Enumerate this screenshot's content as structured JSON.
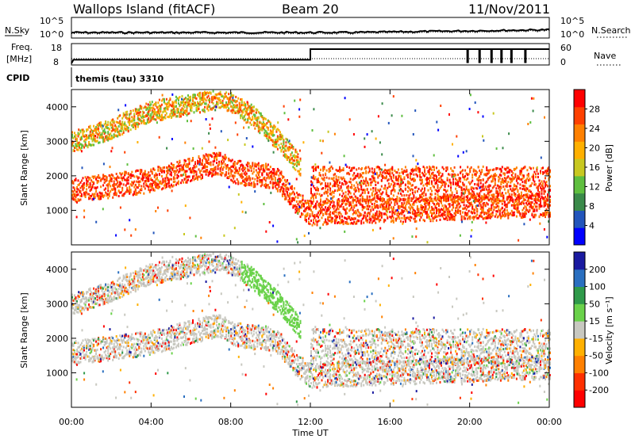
{
  "header": {
    "station": "Wallops Island (fitACF)",
    "beam": "Beam 20",
    "date": "11/Nov/2011"
  },
  "noise_panel": {
    "left_label": "N.Sky",
    "right_label": "N.Search",
    "left_ticks": [
      "10^5",
      "10^0"
    ],
    "right_ticks": [
      "10^5",
      "10^0"
    ]
  },
  "freq_panel": {
    "left_label_1": "Freq.",
    "left_label_2": "[MHz]",
    "right_label": "Nave",
    "left_ticks": [
      "18",
      "8"
    ],
    "right_ticks": [
      "60",
      "0"
    ]
  },
  "cpid_panel": {
    "label": "CPID",
    "program": "themis (tau) 3310"
  },
  "colors": {
    "power": [
      "#0000ff",
      "#2255bb",
      "#3a8a4a",
      "#5fbf3f",
      "#c8c820",
      "#ffb000",
      "#ff8000",
      "#ff4000",
      "#ff0000"
    ],
    "velocity_pos": [
      "#1a1aa0",
      "#2a6fc0",
      "#2f9a4a",
      "#6ad24a"
    ],
    "velocity_ground": "#c8c8c0",
    "velocity_neg": [
      "#ffb000",
      "#ff8000",
      "#ff3000",
      "#ff0000"
    ]
  },
  "chart_data": [
    {
      "type": "heatmap",
      "name": "power",
      "ylabel": "Slant Range [km]",
      "colorbar_label": "Power [dB]",
      "colorbar_ticks": [
        "28",
        "24",
        "20",
        "16",
        "12",
        "8",
        "4"
      ],
      "ylim": [
        0,
        4500
      ],
      "y_ticks": [
        "1000",
        "2000",
        "3000",
        "4000"
      ],
      "xlim_hours": [
        0,
        24
      ],
      "echo_bands": [
        {
          "t": [
            0,
            4,
            7.2,
            8.5,
            10.2,
            11.4,
            12,
            24
          ],
          "range_center": [
            1600,
            1900,
            2400,
            2100,
            2000,
            1200,
            950,
            1200
          ],
          "thickness": 350,
          "level": "high"
        },
        {
          "t": [
            0,
            2,
            4,
            6,
            7.5,
            9,
            10.5,
            11.5
          ],
          "range_center": [
            3000,
            3400,
            3900,
            4100,
            4300,
            3800,
            3000,
            2300
          ],
          "thickness": 300,
          "level": "medium"
        },
        {
          "t": [
            12,
            24
          ],
          "range_center": [
            1800,
            1800
          ],
          "thickness": 500,
          "level": "high"
        }
      ]
    },
    {
      "type": "heatmap",
      "name": "velocity",
      "ylabel": "Slant Range [km]",
      "colorbar_label": "Velocity [m s⁻¹]",
      "colorbar_ticks": [
        "200",
        "100",
        "50",
        "15",
        "-15",
        "-50",
        "-100",
        "-200"
      ],
      "ylim": [
        0,
        4500
      ],
      "y_ticks": [
        "1000",
        "2000",
        "3000",
        "4000"
      ],
      "xlim_hours": [
        0,
        24
      ],
      "x_ticks": [
        "00:00",
        "04:00",
        "08:00",
        "12:00",
        "16:00",
        "20:00",
        "00:00"
      ],
      "xlabel": "Time UT"
    }
  ]
}
